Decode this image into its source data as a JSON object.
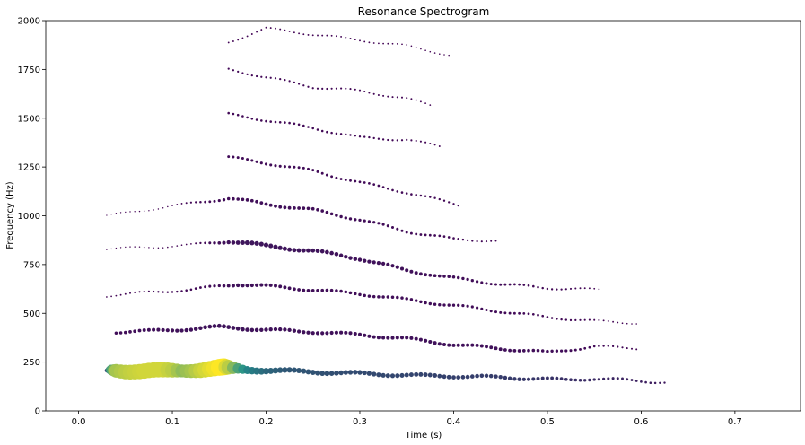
{
  "chart_data": {
    "type": "scatter",
    "title": "Resonance Spectrogram",
    "xlabel": "Time (s)",
    "ylabel": "Frequency (Hz)",
    "xlim": [
      -0.035,
      0.77
    ],
    "ylim": [
      0,
      2000
    ],
    "xticks": [
      "0.0",
      "0.1",
      "0.2",
      "0.3",
      "0.4",
      "0.5",
      "0.6",
      "0.7"
    ],
    "yticks": [
      "0",
      "250",
      "500",
      "750",
      "1000",
      "1250",
      "1500",
      "1750",
      "2000"
    ],
    "grid": false,
    "colormap": "viridis",
    "colors": {
      "low": "#440154",
      "mid": "#21918c",
      "high": "#fde725"
    },
    "series": [
      {
        "x_range": [
          0.03,
          0.63
        ],
        "y_start": 205,
        "y_end": 145,
        "intensity": "fundamental",
        "points": [
          [
            0.03,
            205,
            0.2
          ],
          [
            0.035,
            210,
            0.6
          ],
          [
            0.04,
            208,
            0.8
          ],
          [
            0.05,
            205,
            0.85
          ],
          [
            0.06,
            204,
            0.88
          ],
          [
            0.07,
            204,
            0.9
          ],
          [
            0.08,
            205,
            0.9
          ],
          [
            0.09,
            205,
            0.9
          ],
          [
            0.1,
            206,
            0.85
          ],
          [
            0.11,
            208,
            0.75
          ],
          [
            0.12,
            210,
            0.8
          ],
          [
            0.13,
            212,
            0.88
          ],
          [
            0.14,
            215,
            0.94
          ],
          [
            0.15,
            218,
            1.0
          ],
          [
            0.155,
            220,
            1.0
          ],
          [
            0.16,
            218,
            0.85
          ],
          [
            0.17,
            215,
            0.6
          ],
          [
            0.18,
            212,
            0.45
          ],
          [
            0.2,
            208,
            0.35
          ],
          [
            0.22,
            205,
            0.3
          ],
          [
            0.25,
            200,
            0.28
          ],
          [
            0.28,
            195,
            0.26
          ],
          [
            0.31,
            190,
            0.25
          ],
          [
            0.34,
            185,
            0.24
          ],
          [
            0.37,
            180,
            0.23
          ],
          [
            0.4,
            178,
            0.22
          ],
          [
            0.43,
            175,
            0.21
          ],
          [
            0.46,
            170,
            0.2
          ],
          [
            0.49,
            165,
            0.18
          ],
          [
            0.52,
            160,
            0.16
          ],
          [
            0.55,
            165,
            0.14
          ],
          [
            0.58,
            160,
            0.12
          ],
          [
            0.61,
            150,
            0.1
          ],
          [
            0.63,
            145,
            0.08
          ]
        ]
      },
      {
        "x_range": [
          0.04,
          0.6
        ],
        "y_start": 405,
        "y_end": 320,
        "points": [
          [
            0.04,
            405,
            0.15
          ],
          [
            0.08,
            410,
            0.18
          ],
          [
            0.12,
            420,
            0.2
          ],
          [
            0.15,
            430,
            0.22
          ],
          [
            0.17,
            425,
            0.22
          ],
          [
            0.2,
            415,
            0.2
          ],
          [
            0.25,
            405,
            0.19
          ],
          [
            0.3,
            390,
            0.18
          ],
          [
            0.35,
            370,
            0.18
          ],
          [
            0.4,
            340,
            0.18
          ],
          [
            0.45,
            320,
            0.17
          ],
          [
            0.5,
            300,
            0.15
          ],
          [
            0.55,
            330,
            0.1
          ],
          [
            0.6,
            320,
            0.06
          ]
        ]
      },
      {
        "x_range": [
          0.03,
          0.6
        ],
        "y_start": 590,
        "y_end": 450,
        "points": [
          [
            0.03,
            590,
            0.05
          ],
          [
            0.08,
            610,
            0.08
          ],
          [
            0.12,
            620,
            0.1
          ],
          [
            0.15,
            640,
            0.14
          ],
          [
            0.17,
            650,
            0.2
          ],
          [
            0.2,
            640,
            0.18
          ],
          [
            0.25,
            620,
            0.16
          ],
          [
            0.3,
            600,
            0.15
          ],
          [
            0.35,
            570,
            0.15
          ],
          [
            0.4,
            540,
            0.14
          ],
          [
            0.45,
            510,
            0.12
          ],
          [
            0.5,
            480,
            0.1
          ],
          [
            0.55,
            460,
            0.07
          ],
          [
            0.6,
            450,
            0.04
          ]
        ]
      },
      {
        "x_range": [
          0.03,
          0.56
        ],
        "y_start": 830,
        "y_end": 620,
        "points": [
          [
            0.03,
            830,
            0.03
          ],
          [
            0.08,
            840,
            0.04
          ],
          [
            0.12,
            850,
            0.05
          ],
          [
            0.16,
            870,
            0.2
          ],
          [
            0.18,
            860,
            0.25
          ],
          [
            0.2,
            845,
            0.24
          ],
          [
            0.25,
            820,
            0.22
          ],
          [
            0.3,
            780,
            0.2
          ],
          [
            0.35,
            720,
            0.18
          ],
          [
            0.4,
            680,
            0.15
          ],
          [
            0.45,
            650,
            0.12
          ],
          [
            0.5,
            630,
            0.09
          ],
          [
            0.56,
            620,
            0.05
          ]
        ]
      },
      {
        "x_range": [
          0.03,
          0.45
        ],
        "y_start": 1000,
        "y_end": 870,
        "points": [
          [
            0.03,
            1000,
            0.03
          ],
          [
            0.1,
            1050,
            0.04
          ],
          [
            0.16,
            1090,
            0.15
          ],
          [
            0.2,
            1060,
            0.17
          ],
          [
            0.25,
            1030,
            0.16
          ],
          [
            0.3,
            980,
            0.14
          ],
          [
            0.35,
            920,
            0.12
          ],
          [
            0.4,
            880,
            0.1
          ],
          [
            0.45,
            870,
            0.06
          ]
        ]
      },
      {
        "x_range": [
          0.16,
          0.41
        ],
        "y_start": 1300,
        "y_end": 1050,
        "points": [
          [
            0.16,
            1300,
            0.12
          ],
          [
            0.2,
            1270,
            0.13
          ],
          [
            0.25,
            1230,
            0.12
          ],
          [
            0.3,
            1170,
            0.11
          ],
          [
            0.35,
            1120,
            0.1
          ],
          [
            0.41,
            1050,
            0.08
          ]
        ]
      },
      {
        "x_range": [
          0.16,
          0.39
        ],
        "y_start": 1520,
        "y_end": 1350,
        "points": [
          [
            0.16,
            1520,
            0.1
          ],
          [
            0.2,
            1490,
            0.1
          ],
          [
            0.25,
            1450,
            0.1
          ],
          [
            0.3,
            1400,
            0.09
          ],
          [
            0.35,
            1390,
            0.08
          ],
          [
            0.39,
            1350,
            0.06
          ]
        ]
      },
      {
        "x_range": [
          0.16,
          0.38
        ],
        "y_start": 1750,
        "y_end": 1560,
        "points": [
          [
            0.16,
            1750,
            0.08
          ],
          [
            0.2,
            1710,
            0.08
          ],
          [
            0.25,
            1660,
            0.08
          ],
          [
            0.3,
            1640,
            0.07
          ],
          [
            0.35,
            1600,
            0.07
          ],
          [
            0.38,
            1560,
            0.05
          ]
        ]
      },
      {
        "x_range": [
          0.16,
          0.4
        ],
        "y_start": 1890,
        "y_end": 1820,
        "points": [
          [
            0.16,
            1890,
            0.06
          ],
          [
            0.2,
            1960,
            0.06
          ],
          [
            0.25,
            1930,
            0.06
          ],
          [
            0.3,
            1900,
            0.06
          ],
          [
            0.35,
            1870,
            0.05
          ],
          [
            0.4,
            1820,
            0.04
          ]
        ]
      }
    ]
  }
}
